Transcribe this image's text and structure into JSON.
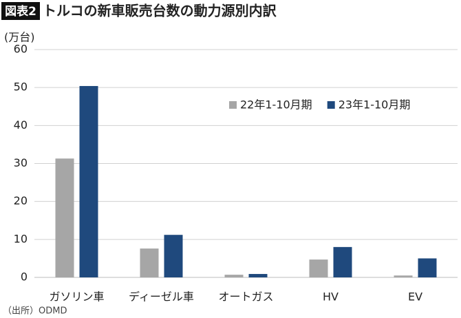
{
  "chart_data": {
    "type": "bar",
    "label": "図表2",
    "title": "トルコの新車販売台数の動力源別内訳",
    "y_label": "(万台)",
    "source": "（出所）ODMD",
    "categories": [
      "ガソリン車",
      "ディーゼル車",
      "オートガス",
      "HV",
      "EV"
    ],
    "series": [
      {
        "name": "22年1-10月期",
        "color": "#a6a6a6",
        "values": [
          31.3,
          7.6,
          0.7,
          4.7,
          0.5
        ]
      },
      {
        "name": "23年1-10月期",
        "color": "#1f497d",
        "values": [
          50.4,
          11.2,
          0.9,
          8.0,
          5.0
        ]
      }
    ],
    "ylim": [
      0,
      60
    ],
    "yticks": [
      0,
      10,
      20,
      30,
      40,
      50,
      60
    ],
    "grid": true
  }
}
